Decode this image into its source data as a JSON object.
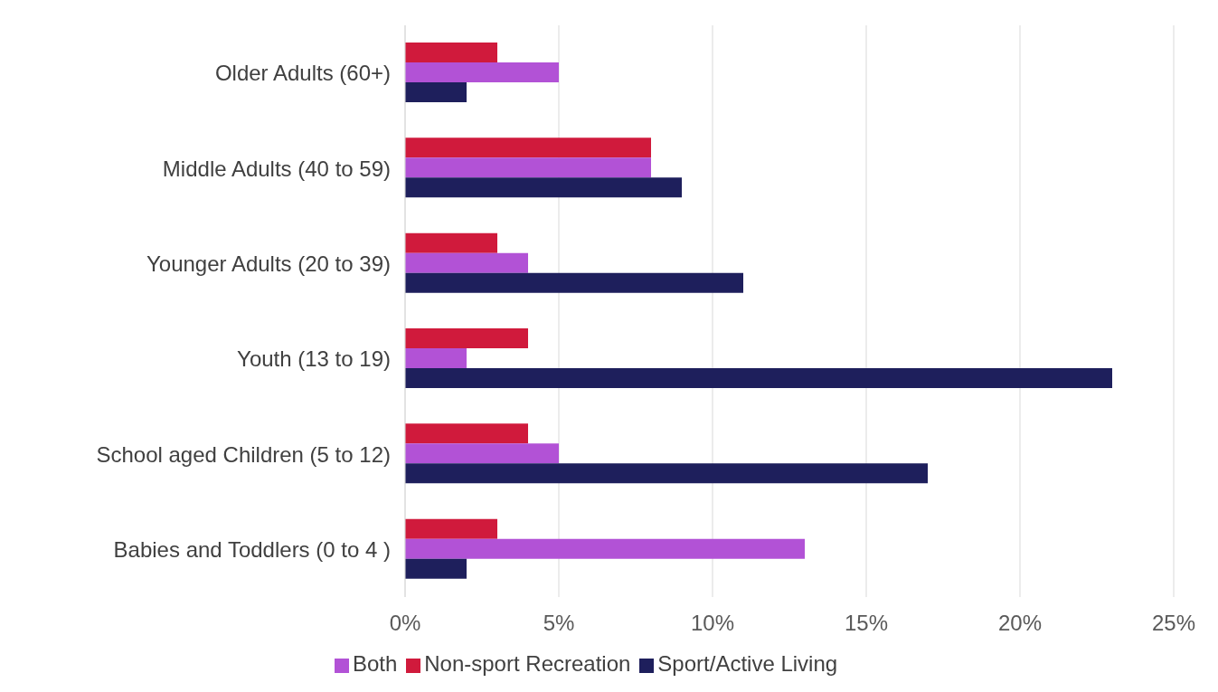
{
  "chart_data": {
    "type": "bar",
    "orientation": "horizontal",
    "categories": [
      "Older Adults (60+)",
      "Middle Adults (40 to 59)",
      "Younger Adults (20 to 39)",
      "Youth (13 to 19)",
      "School aged Children (5 to 12)",
      "Babies and Toddlers (0 to 4 )"
    ],
    "series": [
      {
        "name": "Non-sport Recreation",
        "color": "#d01a3c",
        "values": [
          3,
          8,
          3,
          4,
          4,
          3
        ]
      },
      {
        "name": "Both",
        "color": "#b252d6",
        "values": [
          5,
          8,
          4,
          2,
          5,
          13
        ]
      },
      {
        "name": "Sport/Active Living",
        "color": "#1e1f5c",
        "values": [
          2,
          9,
          11,
          23,
          17,
          2
        ]
      }
    ],
    "xlim": [
      0,
      25
    ],
    "xticks": [
      {
        "value": 0,
        "label": "0%"
      },
      {
        "value": 5,
        "label": "5%"
      },
      {
        "value": 10,
        "label": "10%"
      },
      {
        "value": 15,
        "label": "15%"
      },
      {
        "value": 20,
        "label": "20%"
      },
      {
        "value": 25,
        "label": "25%"
      }
    ],
    "grid": "x",
    "legend": "bottom"
  }
}
